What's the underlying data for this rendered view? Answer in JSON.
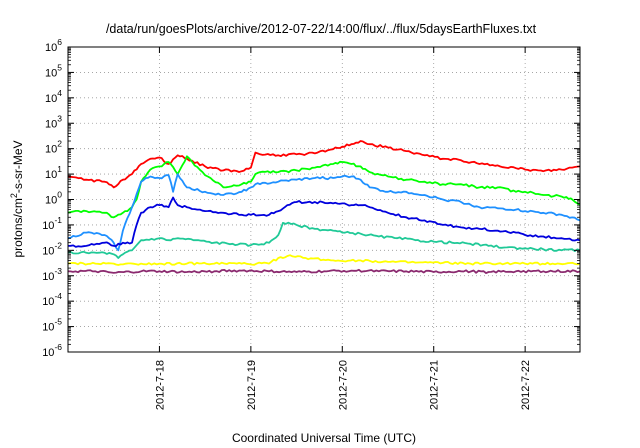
{
  "chart_data": {
    "type": "line",
    "title": "/data/run/goesPlots/archive/2012-07-22/14:00/flux/../flux/5daysEarthFluxes.txt",
    "xlabel": "Coordinated Universal Time (UTC)",
    "ylabel": "protons/cm²-s-sr-MeV",
    "y_scale": "log",
    "ylim": [
      1e-06,
      1000000.0
    ],
    "xlim": [
      17.0,
      22.6
    ],
    "x_units": "day of July 2012",
    "x_ticks": [
      {
        "x": 18,
        "label": "2012-7-18"
      },
      {
        "x": 19,
        "label": "2012-7-19"
      },
      {
        "x": 20,
        "label": "2012-7-20"
      },
      {
        "x": 21,
        "label": "2012-7-21"
      },
      {
        "x": 22,
        "label": "2012-7-22"
      }
    ],
    "y_ticks": [
      {
        "v": 1000000.0,
        "base": "10",
        "exp": "6"
      },
      {
        "v": 100000.0,
        "base": "10",
        "exp": "5"
      },
      {
        "v": 10000.0,
        "base": "10",
        "exp": "4"
      },
      {
        "v": 1000.0,
        "base": "10",
        "exp": "3"
      },
      {
        "v": 100.0,
        "base": "10",
        "exp": "2"
      },
      {
        "v": 10.0,
        "base": "10",
        "exp": "1"
      },
      {
        "v": 1.0,
        "base": "10",
        "exp": "0"
      },
      {
        "v": 0.1,
        "base": "10",
        "exp": "-1"
      },
      {
        "v": 0.01,
        "base": "10",
        "exp": "-2"
      },
      {
        "v": 0.001,
        "base": "10",
        "exp": "-3"
      },
      {
        "v": 0.0001,
        "base": "10",
        "exp": "-4"
      },
      {
        "v": 1e-05,
        "base": "10",
        "exp": "-5"
      },
      {
        "v": 1e-06,
        "base": "10",
        "exp": "-6"
      }
    ],
    "grid": true,
    "series": [
      {
        "color": "#ff0000",
        "x": [
          17.0,
          17.2,
          17.4,
          17.5,
          17.6,
          17.7,
          17.8,
          17.9,
          18.0,
          18.1,
          18.2,
          18.3,
          18.5,
          18.7,
          18.9,
          19.0,
          19.05,
          19.1,
          19.3,
          19.5,
          19.7,
          19.9,
          20.0,
          20.1,
          20.2,
          20.3,
          20.5,
          20.7,
          20.9,
          21.1,
          21.3,
          21.5,
          21.7,
          21.9,
          22.0,
          22.2,
          22.4,
          22.6
        ],
        "y": [
          8,
          6,
          5,
          3,
          6,
          10,
          25,
          40,
          45,
          25,
          55,
          40,
          20,
          14,
          13,
          18,
          70,
          60,
          55,
          60,
          65,
          95,
          120,
          150,
          200,
          150,
          110,
          80,
          55,
          40,
          35,
          25,
          22,
          17,
          15,
          13,
          15,
          20
        ]
      },
      {
        "color": "#00ff00",
        "x": [
          17.0,
          17.2,
          17.4,
          17.5,
          17.6,
          17.7,
          17.75,
          17.8,
          17.9,
          18.0,
          18.1,
          18.2,
          18.3,
          18.5,
          18.7,
          18.9,
          19.0,
          19.05,
          19.1,
          19.3,
          19.5,
          19.7,
          19.9,
          20.0,
          20.1,
          20.2,
          20.3,
          20.5,
          20.7,
          20.9,
          21.1,
          21.3,
          21.5,
          21.7,
          21.9,
          22.0,
          22.2,
          22.4,
          22.5,
          22.6
        ],
        "y": [
          0.3,
          0.35,
          0.3,
          0.2,
          0.3,
          0.5,
          1,
          5,
          15,
          20,
          30,
          10,
          50,
          9,
          3,
          4,
          5,
          10,
          12,
          12,
          14,
          18,
          25,
          30,
          25,
          20,
          12,
          8,
          6,
          5,
          4,
          4,
          3,
          3,
          2,
          2,
          1.5,
          1.3,
          1.1,
          0.6
        ]
      },
      {
        "color": "#1e90ff",
        "x": [
          17.0,
          17.2,
          17.4,
          17.5,
          17.55,
          17.6,
          17.7,
          17.8,
          17.9,
          18.0,
          18.1,
          18.15,
          18.2,
          18.3,
          18.5,
          18.7,
          18.9,
          19.0,
          19.05,
          19.1,
          19.3,
          19.5,
          19.7,
          19.9,
          20.0,
          20.1,
          20.2,
          20.3,
          20.5,
          20.7,
          20.9,
          21.1,
          21.3,
          21.5,
          21.7,
          21.9,
          22.0,
          22.2,
          22.4,
          22.6
        ],
        "y": [
          0.03,
          0.05,
          0.04,
          0.02,
          0.01,
          0.06,
          0.5,
          5,
          8,
          7,
          9,
          2,
          10,
          3,
          2,
          1.5,
          2,
          3,
          4,
          4,
          5,
          6,
          7,
          7,
          8,
          8,
          6,
          3,
          2,
          2,
          1.5,
          1,
          0.8,
          0.5,
          0.45,
          0.4,
          0.35,
          0.3,
          0.25,
          0.15
        ]
      },
      {
        "color": "#0000dd",
        "x": [
          17.0,
          17.2,
          17.4,
          17.5,
          17.6,
          17.7,
          17.75,
          17.8,
          17.9,
          18.0,
          18.1,
          18.15,
          18.2,
          18.3,
          18.5,
          18.7,
          18.9,
          19.0,
          19.2,
          19.3,
          19.4,
          19.5,
          19.7,
          19.9,
          20.0,
          20.1,
          20.2,
          20.3,
          20.5,
          20.7,
          20.9,
          21.1,
          21.3,
          21.5,
          21.7,
          21.9,
          22.0,
          22.2,
          22.4,
          22.6
        ],
        "y": [
          0.015,
          0.015,
          0.02,
          0.015,
          0.02,
          0.02,
          0.1,
          0.3,
          0.5,
          0.6,
          0.5,
          1.2,
          0.6,
          0.5,
          0.35,
          0.3,
          0.25,
          0.25,
          0.25,
          0.35,
          0.6,
          0.8,
          0.8,
          0.7,
          0.7,
          0.6,
          0.6,
          0.5,
          0.3,
          0.2,
          0.15,
          0.1,
          0.08,
          0.07,
          0.06,
          0.05,
          0.04,
          0.035,
          0.03,
          0.025
        ]
      },
      {
        "color": "#20c997",
        "x": [
          17.0,
          17.2,
          17.4,
          17.5,
          17.55,
          17.6,
          17.7,
          17.8,
          18.0,
          18.1,
          18.2,
          18.4,
          18.6,
          18.8,
          19.0,
          19.2,
          19.3,
          19.35,
          19.5,
          19.7,
          19.9,
          20.0,
          20.2,
          20.4,
          20.6,
          20.8,
          21.0,
          21.2,
          21.4,
          21.6,
          21.8,
          22.0,
          22.2,
          22.4,
          22.6
        ],
        "y": [
          0.008,
          0.008,
          0.008,
          0.007,
          0.005,
          0.007,
          0.01,
          0.025,
          0.03,
          0.025,
          0.03,
          0.025,
          0.02,
          0.018,
          0.016,
          0.02,
          0.04,
          0.12,
          0.1,
          0.07,
          0.06,
          0.05,
          0.045,
          0.035,
          0.03,
          0.025,
          0.022,
          0.02,
          0.018,
          0.015,
          0.013,
          0.012,
          0.011,
          0.01,
          0.01
        ]
      },
      {
        "color": "#ffff00",
        "x": [
          17.0,
          17.3,
          17.5,
          17.6,
          17.8,
          18.0,
          18.3,
          18.6,
          18.9,
          19.2,
          19.3,
          19.4,
          19.6,
          19.9,
          20.2,
          20.5,
          20.8,
          21.1,
          21.4,
          21.7,
          22.0,
          22.3,
          22.6
        ],
        "y": [
          0.003,
          0.003,
          0.003,
          0.0028,
          0.003,
          0.003,
          0.003,
          0.003,
          0.003,
          0.003,
          0.005,
          0.006,
          0.005,
          0.004,
          0.004,
          0.0035,
          0.0033,
          0.0032,
          0.003,
          0.003,
          0.003,
          0.003,
          0.003
        ]
      },
      {
        "color": "#8b2a6f",
        "x": [
          17.0,
          17.3,
          17.5,
          17.8,
          18.0,
          18.3,
          18.6,
          18.9,
          19.2,
          19.5,
          19.8,
          20.1,
          20.4,
          20.7,
          21.0,
          21.3,
          21.6,
          21.9,
          22.2,
          22.6
        ],
        "y": [
          0.0015,
          0.0015,
          0.0013,
          0.0015,
          0.0015,
          0.0014,
          0.0015,
          0.0016,
          0.0015,
          0.0014,
          0.0015,
          0.0016,
          0.0015,
          0.0015,
          0.0014,
          0.0015,
          0.0014,
          0.0015,
          0.0015,
          0.0015
        ]
      }
    ]
  }
}
